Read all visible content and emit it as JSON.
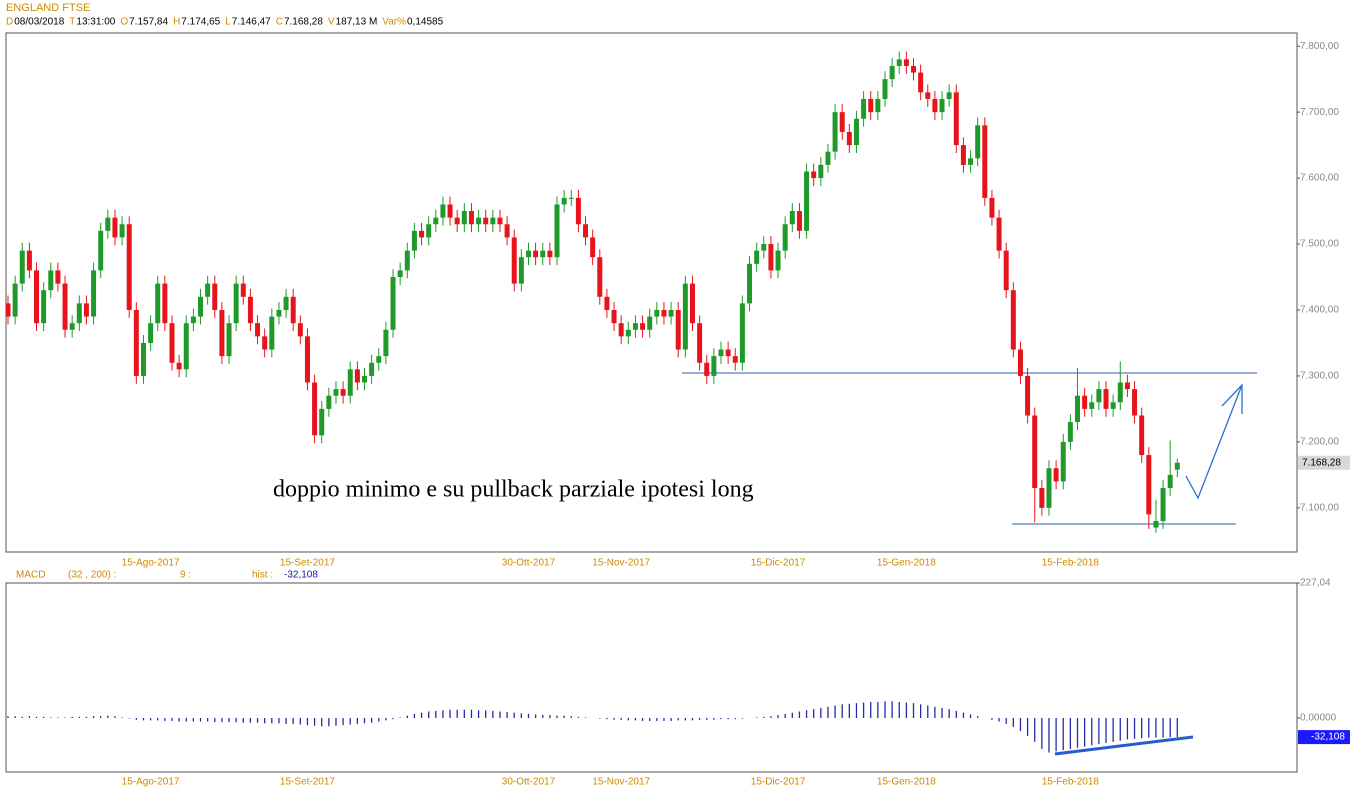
{
  "chart_data": {
    "type": "candlestick",
    "title": "ENGLAND FTSE",
    "info": [
      {
        "key": "D",
        "value": "08/03/2018"
      },
      {
        "key": "T",
        "value": "13:31:00"
      },
      {
        "key": "O",
        "value": "7.157,84"
      },
      {
        "key": "H",
        "value": "7.174,65"
      },
      {
        "key": "L",
        "value": "7.146,47"
      },
      {
        "key": "C",
        "value": "7.168,28"
      },
      {
        "key": "V",
        "value": "187,13 M"
      },
      {
        "key": "Var%",
        "value": "0,14585"
      }
    ],
    "annotation": "doppio minimo e su pullback parziale ipotesi long",
    "last_price": {
      "value": 7168.28,
      "label": "7.168,28"
    },
    "up_color": "#1f9a2a",
    "down_color": "#e8141c",
    "ylim": [
      7033,
      7820
    ],
    "yticks": [
      {
        "value": 7100,
        "label": "7.100,00"
      },
      {
        "value": 7200,
        "label": "7.200,00"
      },
      {
        "value": 7300,
        "label": "7.300,00"
      },
      {
        "value": 7400,
        "label": "7.400,00"
      },
      {
        "value": 7500,
        "label": "7.500,00"
      },
      {
        "value": 7600,
        "label": "7.600,00"
      },
      {
        "value": 7700,
        "label": "7.700,00"
      },
      {
        "value": 7800,
        "label": "7.800,00"
      }
    ],
    "categories": [
      null,
      null,
      null,
      null,
      null,
      null,
      null,
      null,
      null,
      null,
      null,
      null,
      null,
      null,
      null,
      null,
      null,
      null,
      null,
      null,
      "15-Ago-2017",
      null,
      null,
      null,
      null,
      null,
      null,
      null,
      null,
      null,
      null,
      null,
      null,
      null,
      null,
      null,
      null,
      null,
      null,
      null,
      null,
      null,
      "15-Set-2017",
      null,
      null,
      null,
      null,
      null,
      null,
      null,
      null,
      null,
      null,
      null,
      null,
      null,
      null,
      null,
      null,
      null,
      null,
      null,
      null,
      null,
      null,
      null,
      null,
      null,
      null,
      null,
      null,
      null,
      null,
      "30-Ott-2017",
      null,
      null,
      null,
      null,
      null,
      null,
      null,
      null,
      null,
      null,
      null,
      null,
      "15-Nov-2017",
      null,
      null,
      null,
      null,
      null,
      null,
      null,
      null,
      null,
      null,
      null,
      null,
      null,
      null,
      null,
      null,
      null,
      null,
      null,
      null,
      null,
      "15-Dic-2017",
      null,
      null,
      null,
      null,
      null,
      null,
      null,
      null,
      null,
      null,
      null,
      null,
      null,
      null,
      null,
      null,
      null,
      "15-Gen-2018",
      null,
      null,
      null,
      null,
      null,
      null,
      null,
      null,
      null,
      null,
      null,
      null,
      null,
      null,
      null,
      null,
      null,
      null,
      null,
      null,
      null,
      null,
      "15-Feb-2018",
      null,
      null,
      null,
      null,
      null,
      null,
      null,
      null,
      null,
      null,
      null,
      null,
      null,
      null,
      null
    ],
    "candles": [
      [
        7410,
        7422,
        7378,
        7390
      ],
      [
        7390,
        7452,
        7378,
        7440
      ],
      [
        7440,
        7502,
        7428,
        7490
      ],
      [
        7490,
        7502,
        7448,
        7460
      ],
      [
        7460,
        7472,
        7368,
        7380
      ],
      [
        7380,
        7442,
        7368,
        7430
      ],
      [
        7430,
        7472,
        7418,
        7460
      ],
      [
        7460,
        7472,
        7428,
        7440
      ],
      [
        7440,
        7452,
        7358,
        7370
      ],
      [
        7370,
        7392,
        7358,
        7380
      ],
      [
        7380,
        7422,
        7368,
        7410
      ],
      [
        7410,
        7422,
        7378,
        7390
      ],
      [
        7390,
        7472,
        7378,
        7460
      ],
      [
        7460,
        7532,
        7448,
        7520
      ],
      [
        7520,
        7552,
        7508,
        7540
      ],
      [
        7540,
        7552,
        7498,
        7510
      ],
      [
        7510,
        7542,
        7498,
        7530
      ],
      [
        7530,
        7542,
        7388,
        7400
      ],
      [
        7400,
        7412,
        7288,
        7300
      ],
      [
        7300,
        7362,
        7288,
        7350
      ],
      [
        7350,
        7392,
        7338,
        7380
      ],
      [
        7380,
        7452,
        7368,
        7440
      ],
      [
        7440,
        7452,
        7368,
        7380
      ],
      [
        7380,
        7392,
        7308,
        7320
      ],
      [
        7320,
        7332,
        7298,
        7310
      ],
      [
        7310,
        7392,
        7298,
        7380
      ],
      [
        7380,
        7402,
        7368,
        7390
      ],
      [
        7390,
        7432,
        7378,
        7420
      ],
      [
        7420,
        7452,
        7408,
        7440
      ],
      [
        7440,
        7452,
        7388,
        7400
      ],
      [
        7400,
        7412,
        7318,
        7330
      ],
      [
        7330,
        7392,
        7318,
        7380
      ],
      [
        7380,
        7452,
        7368,
        7440
      ],
      [
        7440,
        7452,
        7408,
        7420
      ],
      [
        7420,
        7432,
        7368,
        7380
      ],
      [
        7380,
        7392,
        7348,
        7360
      ],
      [
        7360,
        7372,
        7328,
        7340
      ],
      [
        7340,
        7402,
        7328,
        7390
      ],
      [
        7390,
        7412,
        7378,
        7400
      ],
      [
        7400,
        7432,
        7388,
        7420
      ],
      [
        7420,
        7432,
        7368,
        7380
      ],
      [
        7380,
        7392,
        7348,
        7360
      ],
      [
        7360,
        7372,
        7278,
        7290
      ],
      [
        7290,
        7302,
        7198,
        7210
      ],
      [
        7210,
        7262,
        7198,
        7250
      ],
      [
        7250,
        7282,
        7238,
        7270
      ],
      [
        7270,
        7292,
        7258,
        7280
      ],
      [
        7280,
        7292,
        7258,
        7270
      ],
      [
        7270,
        7322,
        7258,
        7310
      ],
      [
        7310,
        7322,
        7278,
        7290
      ],
      [
        7290,
        7312,
        7278,
        7300
      ],
      [
        7300,
        7332,
        7288,
        7320
      ],
      [
        7320,
        7342,
        7308,
        7330
      ],
      [
        7330,
        7382,
        7318,
        7370
      ],
      [
        7370,
        7462,
        7358,
        7450
      ],
      [
        7450,
        7472,
        7438,
        7460
      ],
      [
        7460,
        7502,
        7448,
        7490
      ],
      [
        7490,
        7532,
        7478,
        7520
      ],
      [
        7520,
        7532,
        7498,
        7510
      ],
      [
        7510,
        7542,
        7498,
        7530
      ],
      [
        7530,
        7552,
        7518,
        7540
      ],
      [
        7540,
        7572,
        7528,
        7560
      ],
      [
        7560,
        7572,
        7528,
        7540
      ],
      [
        7540,
        7552,
        7518,
        7530
      ],
      [
        7530,
        7562,
        7518,
        7550
      ],
      [
        7550,
        7562,
        7518,
        7530
      ],
      [
        7530,
        7552,
        7518,
        7540
      ],
      [
        7540,
        7552,
        7518,
        7530
      ],
      [
        7530,
        7552,
        7518,
        7540
      ],
      [
        7540,
        7552,
        7518,
        7530
      ],
      [
        7530,
        7542,
        7498,
        7510
      ],
      [
        7510,
        7522,
        7428,
        7440
      ],
      [
        7440,
        7492,
        7428,
        7480
      ],
      [
        7480,
        7502,
        7468,
        7490
      ],
      [
        7490,
        7502,
        7468,
        7480
      ],
      [
        7480,
        7502,
        7468,
        7490
      ],
      [
        7490,
        7502,
        7468,
        7480
      ],
      [
        7480,
        7572,
        7468,
        7560
      ],
      [
        7560,
        7582,
        7548,
        7570
      ],
      [
        7570,
        7582,
        7558,
        7570
      ],
      [
        7570,
        7582,
        7518,
        7530
      ],
      [
        7530,
        7542,
        7498,
        7510
      ],
      [
        7510,
        7522,
        7468,
        7480
      ],
      [
        7480,
        7492,
        7408,
        7420
      ],
      [
        7420,
        7432,
        7388,
        7400
      ],
      [
        7400,
        7412,
        7368,
        7380
      ],
      [
        7380,
        7392,
        7348,
        7360
      ],
      [
        7360,
        7382,
        7348,
        7370
      ],
      [
        7370,
        7392,
        7358,
        7380
      ],
      [
        7380,
        7392,
        7358,
        7370
      ],
      [
        7370,
        7402,
        7358,
        7390
      ],
      [
        7390,
        7412,
        7378,
        7400
      ],
      [
        7400,
        7412,
        7378,
        7390
      ],
      [
        7390,
        7412,
        7378,
        7400
      ],
      [
        7400,
        7412,
        7328,
        7340
      ],
      [
        7340,
        7452,
        7328,
        7440
      ],
      [
        7440,
        7452,
        7368,
        7380
      ],
      [
        7380,
        7392,
        7308,
        7320
      ],
      [
        7320,
        7332,
        7288,
        7300
      ],
      [
        7300,
        7342,
        7288,
        7330
      ],
      [
        7330,
        7352,
        7318,
        7340
      ],
      [
        7340,
        7352,
        7318,
        7330
      ],
      [
        7330,
        7342,
        7308,
        7320
      ],
      [
        7320,
        7422,
        7308,
        7410
      ],
      [
        7410,
        7482,
        7398,
        7470
      ],
      [
        7470,
        7502,
        7458,
        7490
      ],
      [
        7490,
        7512,
        7478,
        7500
      ],
      [
        7500,
        7512,
        7448,
        7460
      ],
      [
        7460,
        7502,
        7448,
        7490
      ],
      [
        7490,
        7542,
        7478,
        7530
      ],
      [
        7530,
        7562,
        7518,
        7550
      ],
      [
        7550,
        7562,
        7508,
        7520
      ],
      [
        7520,
        7622,
        7508,
        7610
      ],
      [
        7610,
        7622,
        7588,
        7600
      ],
      [
        7600,
        7632,
        7588,
        7620
      ],
      [
        7620,
        7652,
        7608,
        7640
      ],
      [
        7640,
        7712,
        7628,
        7700
      ],
      [
        7700,
        7712,
        7658,
        7670
      ],
      [
        7670,
        7682,
        7638,
        7650
      ],
      [
        7650,
        7702,
        7638,
        7690
      ],
      [
        7690,
        7732,
        7678,
        7720
      ],
      [
        7720,
        7732,
        7688,
        7700
      ],
      [
        7700,
        7732,
        7688,
        7720
      ],
      [
        7720,
        7762,
        7708,
        7750
      ],
      [
        7750,
        7782,
        7738,
        7770
      ],
      [
        7770,
        7792,
        7758,
        7780
      ],
      [
        7780,
        7792,
        7758,
        7770
      ],
      [
        7770,
        7782,
        7748,
        7760
      ],
      [
        7760,
        7772,
        7718,
        7730
      ],
      [
        7730,
        7742,
        7708,
        7720
      ],
      [
        7720,
        7732,
        7688,
        7700
      ],
      [
        7700,
        7732,
        7688,
        7720
      ],
      [
        7720,
        7742,
        7708,
        7730
      ],
      [
        7730,
        7742,
        7638,
        7650
      ],
      [
        7650,
        7662,
        7608,
        7620
      ],
      [
        7620,
        7642,
        7608,
        7630
      ],
      [
        7630,
        7692,
        7618,
        7680
      ],
      [
        7680,
        7692,
        7558,
        7570
      ],
      [
        7570,
        7582,
        7528,
        7540
      ],
      [
        7540,
        7552,
        7478,
        7490
      ],
      [
        7490,
        7502,
        7418,
        7430
      ],
      [
        7430,
        7442,
        7328,
        7340
      ],
      [
        7340,
        7352,
        7288,
        7300
      ],
      [
        7300,
        7312,
        7228,
        7240
      ],
      [
        7240,
        7252,
        7078,
        7130
      ],
      [
        7130,
        7142,
        7088,
        7100
      ],
      [
        7100,
        7172,
        7088,
        7160
      ],
      [
        7160,
        7172,
        7128,
        7140
      ],
      [
        7140,
        7212,
        7128,
        7200
      ],
      [
        7200,
        7242,
        7188,
        7230
      ],
      [
        7230,
        7312,
        7218,
        7270
      ],
      [
        7270,
        7282,
        7238,
        7250
      ],
      [
        7250,
        7272,
        7238,
        7260
      ],
      [
        7260,
        7292,
        7248,
        7280
      ],
      [
        7280,
        7292,
        7238,
        7250
      ],
      [
        7250,
        7272,
        7238,
        7260
      ],
      [
        7260,
        7322,
        7248,
        7290
      ],
      [
        7290,
        7302,
        7268,
        7280
      ],
      [
        7280,
        7292,
        7228,
        7240
      ],
      [
        7240,
        7252,
        7168,
        7180
      ],
      [
        7180,
        7192,
        7068,
        7090
      ],
      [
        7070,
        7112,
        7062,
        7080
      ],
      [
        7080,
        7142,
        7068,
        7130
      ],
      [
        7130,
        7202,
        7118,
        7150
      ],
      [
        7157.84,
        7174.65,
        7146.47,
        7168.28
      ]
    ],
    "macd": {
      "label": "MACD",
      "params": "(32 , 200) :",
      "signal": "9 :",
      "hist_label": "hist :",
      "hist_value": "-32,108",
      "color": "#2a2aa8",
      "ylim": [
        -90.8,
        227.04
      ],
      "yticks": [
        {
          "value": 227.04,
          "label": "227,04"
        },
        {
          "value": 0,
          "label": "0,00000"
        }
      ],
      "last": {
        "value": -32.108,
        "label": "-32,108"
      },
      "values": [
        3,
        3,
        2,
        3,
        2,
        2,
        1,
        1,
        1,
        2,
        2,
        2,
        3,
        3,
        4,
        3,
        1,
        -1,
        -3,
        -4,
        -4,
        -4,
        -5,
        -5,
        -6,
        -6,
        -6,
        -6,
        -6,
        -7,
        -7,
        -7,
        -7,
        -8,
        -8,
        -8,
        -9,
        -9,
        -9,
        -10,
        -10,
        -11,
        -12,
        -13,
        -14,
        -14,
        -13,
        -12,
        -11,
        -10,
        -9,
        -8,
        -6,
        -4,
        -2,
        1,
        4,
        7,
        9,
        11,
        12,
        13,
        14,
        14,
        14,
        14,
        13,
        13,
        12,
        11,
        10,
        9,
        8,
        7,
        6,
        5,
        5,
        4,
        4,
        3,
        2,
        1,
        0,
        -1,
        -2,
        -3,
        -3,
        -4,
        -4,
        -5,
        -5,
        -5,
        -5,
        -5,
        -4,
        -4,
        -4,
        -3,
        -3,
        -3,
        -2,
        -2,
        -2,
        -1,
        0,
        1,
        2,
        3,
        5,
        7,
        9,
        11,
        13,
        15,
        17,
        19,
        21,
        23,
        24,
        25,
        26,
        27,
        27,
        28,
        28,
        27,
        26,
        25,
        23,
        21,
        19,
        17,
        15,
        12,
        9,
        6,
        3,
        0,
        -3,
        -6,
        -10,
        -15,
        -22,
        -30,
        -40,
        -52,
        -58,
        -56,
        -54,
        -52,
        -50,
        -48,
        -46,
        -44,
        -42,
        -40,
        -38,
        -36,
        -35,
        -34,
        -33,
        -33,
        -33,
        -32.5,
        -32.108
      ]
    }
  }
}
